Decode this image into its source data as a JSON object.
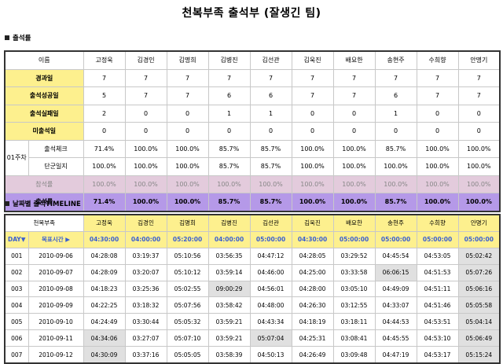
{
  "title": "천복부족 출석부 (잘생긴 팀)",
  "section1_label": "출석률",
  "section2_label": "날짜별 출석TIMELINE",
  "attendance": {
    "name_header": "이름",
    "names": [
      "고정욱",
      "김경인",
      "김명희",
      "김병진",
      "김선관",
      "김욱진",
      "배요한",
      "송현주",
      "수희향",
      "안명기"
    ],
    "rows": [
      {
        "label": "경과일",
        "values": [
          "7",
          "7",
          "7",
          "7",
          "7",
          "7",
          "7",
          "7",
          "7",
          "7"
        ]
      },
      {
        "label": "출석성공일",
        "values": [
          "5",
          "7",
          "7",
          "6",
          "6",
          "7",
          "7",
          "6",
          "7",
          "7"
        ]
      },
      {
        "label": "출석실패일",
        "values": [
          "2",
          "0",
          "0",
          "1",
          "1",
          "0",
          "0",
          "1",
          "0",
          "0"
        ]
      },
      {
        "label": "미출석일",
        "values": [
          "0",
          "0",
          "0",
          "0",
          "0",
          "0",
          "0",
          "0",
          "0",
          "0"
        ]
      }
    ],
    "week_label": "01주차",
    "week_rows": [
      {
        "label": "출석체크",
        "values": [
          "71.4%",
          "100.0%",
          "100.0%",
          "85.7%",
          "85.7%",
          "100.0%",
          "100.0%",
          "85.7%",
          "100.0%",
          "100.0%"
        ]
      },
      {
        "label": "단군일지",
        "values": [
          "100.0%",
          "100.0%",
          "100.0%",
          "85.7%",
          "85.7%",
          "100.0%",
          "100.0%",
          "100.0%",
          "100.0%",
          "100.0%"
        ]
      }
    ],
    "participation": {
      "label": "참석률",
      "values": [
        "100.0%",
        "100.0%",
        "100.0%",
        "100.0%",
        "100.0%",
        "100.0%",
        "100.0%",
        "100.0%",
        "100.0%",
        "100.0%"
      ]
    },
    "total": {
      "label": "출석률",
      "values": [
        "71.4%",
        "100.0%",
        "100.0%",
        "85.7%",
        "85.7%",
        "100.0%",
        "100.0%",
        "85.7%",
        "100.0%",
        "100.0%"
      ]
    }
  },
  "timeline": {
    "tribe_header": "천복부족",
    "day_header": "DAY▼",
    "target_header": "목표시간 ▶",
    "targets": [
      "04:30:00",
      "04:00:00",
      "05:20:00",
      "04:00:00",
      "05:00:00",
      "04:30:00",
      "05:00:00",
      "05:00:00",
      "05:00:00",
      "05:00:00"
    ],
    "rows": [
      {
        "day": "001",
        "date": "2010-09-06",
        "times": [
          "04:28:08",
          "03:19:37",
          "05:10:56",
          "03:56:35",
          "04:47:12",
          "04:28:05",
          "03:29:52",
          "04:45:54",
          "04:53:05",
          "05:02:42"
        ]
      },
      {
        "day": "002",
        "date": "2010-09-07",
        "times": [
          "04:28:09",
          "03:20:07",
          "05:10:12",
          "03:59:14",
          "04:46:00",
          "04:25:00",
          "03:33:58",
          "06:06:15",
          "04:51:53",
          "05:07:26"
        ]
      },
      {
        "day": "003",
        "date": "2010-09-08",
        "times": [
          "04:18:23",
          "03:25:36",
          "05:02:55",
          "09:00:29",
          "04:56:01",
          "04:28:00",
          "03:05:10",
          "04:49:09",
          "04:51:11",
          "05:06:16"
        ]
      },
      {
        "day": "004",
        "date": "2010-09-09",
        "times": [
          "04:22:25",
          "03:18:32",
          "05:07:56",
          "03:58:42",
          "04:48:00",
          "04:26:30",
          "03:12:55",
          "04:33:07",
          "04:51:46",
          "05:05:58"
        ]
      },
      {
        "day": "005",
        "date": "2010-09-10",
        "times": [
          "04:24:49",
          "03:30:44",
          "05:05:32",
          "03:59:21",
          "04:43:34",
          "04:18:19",
          "03:18:11",
          "04:44:53",
          "04:53:51",
          "05:04:14"
        ]
      },
      {
        "day": "006",
        "date": "2010-09-11",
        "times": [
          "04:34:06",
          "03:27:07",
          "05:07:10",
          "03:59:21",
          "05:07:04",
          "04:25:31",
          "03:08:41",
          "04:45:55",
          "04:53:10",
          "05:06:49"
        ]
      },
      {
        "day": "007",
        "date": "2010-09-12",
        "times": [
          "04:30:09",
          "03:37:16",
          "05:05:05",
          "03:58:39",
          "04:50:13",
          "04:26:49",
          "03:09:48",
          "04:47:19",
          "04:53:17",
          "05:15:24"
        ]
      }
    ]
  },
  "colors": {
    "highlight_yellow": "#fdf08e",
    "total_purple": "#b599e8",
    "participation_pink": "#e3cbdc",
    "late_gray": "#e0e0e0",
    "target_blue": "#3a5fd0"
  }
}
